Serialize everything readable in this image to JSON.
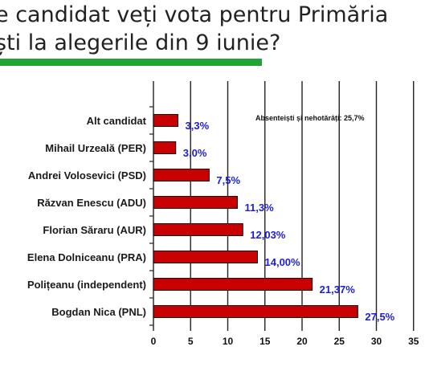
{
  "headline": {
    "line1": "e candidat veți vota pentru Primăria",
    "line2": "ști la alegerile din 9 iunie?"
  },
  "colors": {
    "bar": "#c90000",
    "accent": "#22a335",
    "value_label": "#1d1dd6"
  },
  "chart_data": {
    "type": "bar",
    "orientation": "horizontal",
    "categories": [
      "Alt candidat",
      "Mihail Urzeală (PER)",
      "Andrei Volosevici (PSD)",
      "Răzvan Enescu (ADU)",
      "Florian Săraru (AUR)",
      "Elena Dolniceanu (PRA)",
      "Polițeanu (independent)",
      "Bogdan Nica (PNL)"
    ],
    "values": [
      3.3,
      3.0,
      7.5,
      11.3,
      12.03,
      14.0,
      21.37,
      27.5
    ],
    "value_labels": [
      "3,3%",
      "3,0%",
      "7,5%",
      "11,3%",
      "12,03%",
      "14,00%",
      "21,37%",
      "27,5%"
    ],
    "xlim": [
      0,
      35
    ],
    "xticks": [
      "0",
      "5",
      "10",
      "15",
      "20",
      "25",
      "30",
      "35"
    ],
    "grid": "vertical",
    "annotation": "Absenteiști și nehotărâți: 25,7%"
  }
}
